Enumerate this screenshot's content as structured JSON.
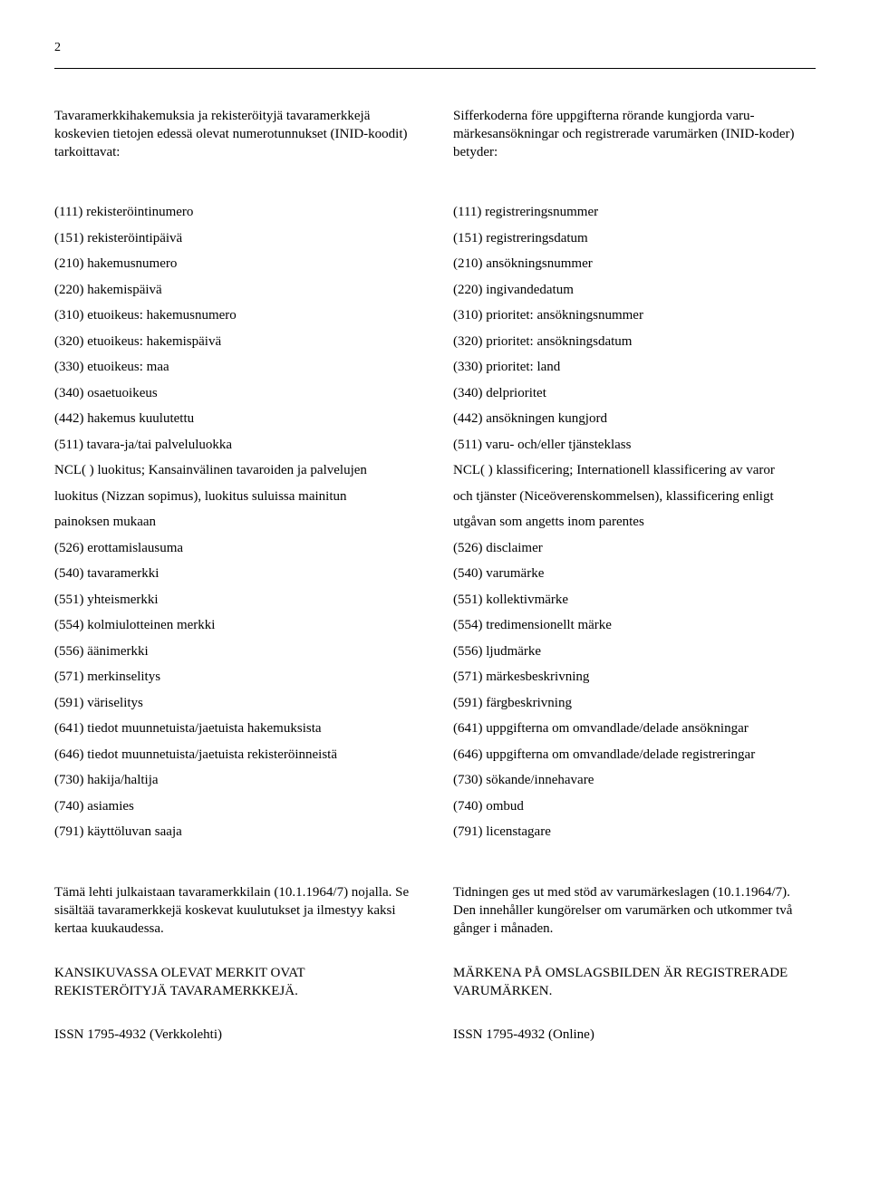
{
  "page_number": "2",
  "intro": {
    "left": "Tavaramerkkihakemuksia ja rekisteröityjä tavaramerkkejä koskevien tietojen edessä olevat numerotunnukset (INID-koodit) tarkoittavat:",
    "right": "Sifferkoderna före uppgifterna rörande kungjorda varu-märkesansökningar och registrerade varumärken (INID-koder) betyder:"
  },
  "left_list": [
    "(111) rekisteröintinumero",
    "(151) rekisteröintipäivä",
    "(210) hakemusnumero",
    "(220) hakemispäivä",
    "(310) etuoikeus: hakemusnumero",
    "(320) etuoikeus: hakemispäivä",
    "(330) etuoikeus: maa",
    "(340) osaetuoikeus",
    "(442) hakemus kuulutettu",
    "(511) tavara-ja/tai palveluluokka",
    "NCL( ) luokitus; Kansainvälinen tavaroiden ja palvelujen",
    "luokitus (Nizzan sopimus), luokitus suluissa mainitun",
    "painoksen mukaan",
    "(526) erottamislausuma",
    "(540) tavaramerkki",
    "(551) yhteismerkki",
    "(554) kolmiulotteinen merkki",
    "(556) äänimerkki",
    "(571) merkinselitys",
    "(591) väriselitys",
    "(641) tiedot muunnetuista/jaetuista hakemuksista",
    "(646) tiedot muunnetuista/jaetuista rekisteröinneistä",
    "(730) hakija/haltija",
    "(740) asiamies",
    "(791) käyttöluvan saaja"
  ],
  "right_list": [
    "(111) registreringsnummer",
    "(151) registreringsdatum",
    "(210) ansökningsnummer",
    "(220) ingivandedatum",
    "(310) prioritet: ansökningsnummer",
    "(320) prioritet: ansökningsdatum",
    "(330) prioritet: land",
    "(340) delprioritet",
    "(442) ansökningen kungjord",
    "(511) varu- och/eller tjänsteklass",
    "NCL( ) klassificering; Internationell klassificering av varor",
    "och tjänster (Niceöverenskommelsen), klassificering enligt",
    "utgåvan som angetts inom parentes",
    "(526) disclaimer",
    "(540) varumärke",
    "(551) kollektivmärke",
    "(554) tredimensionellt märke",
    "(556) ljudmärke",
    "(571) märkesbeskrivning",
    "(591) färgbeskrivning",
    "(641) uppgifterna om omvandlade/delade ansökningar",
    "(646) uppgifterna om omvandlade/delade registreringar",
    "(730) sökande/innehavare",
    "(740) ombud",
    "(791) licenstagare"
  ],
  "footer": {
    "left_p1": "Tämä lehti julkaistaan tavaramerkkilain (10.1.1964/7) nojalla. Se sisältää tavaramerkkejä koskevat kuulutukset ja ilmestyy kaksi kertaa kuukaudessa.",
    "left_p2": "KANSIKUVASSA OLEVAT MERKIT OVAT REKISTERÖITYJÄ TAVARAMERKKEJÄ.",
    "left_issn": "ISSN  1795-4932 (Verkkolehti)",
    "right_p1": "Tidningen ges ut med stöd av varumärkeslagen (10.1.1964/7). Den innehåller kungörelser om varumärken och utkommer två gånger i månaden.",
    "right_p2": "MÄRKENA PÅ OMSLAGSBILDEN ÄR REGISTRERADE VARUMÄRKEN.",
    "right_issn": "ISSN 1795-4932 (Online)"
  }
}
